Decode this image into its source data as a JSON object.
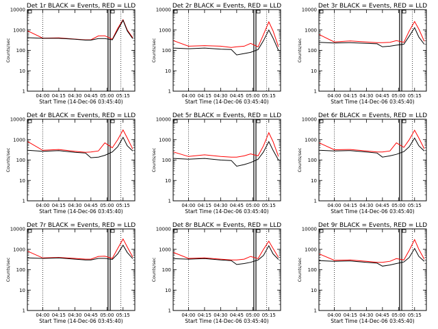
{
  "chart_data": {
    "type": "line",
    "layout": "3x3 grid of panels",
    "x_ticks": [
      "04:00",
      "04:15",
      "04:30",
      "04:45",
      "05:00",
      "05:15"
    ],
    "x_range": [
      "03:45:40",
      "05:26:00"
    ],
    "y_scale": "log",
    "y_range": [
      1,
      10000
    ],
    "y_ticks": [
      "1",
      "10",
      "100",
      "1000",
      "10000"
    ],
    "ylabel": "Counts/sec",
    "xlabel": "Start Time (14-Dec-06 03:45:40)",
    "reference_lines": {
      "dotted": [
        "04:00",
        "05:13"
      ],
      "solid": [
        "05:01",
        "05:03"
      ]
    },
    "series_colors": {
      "events": "#000000",
      "lld": "#ff0000"
    },
    "panels": [
      {
        "title": "Det 1r BLACK = Events, RED = LLD",
        "series": [
          {
            "x": [
              "03:46",
              "04:00",
              "04:15",
              "04:30",
              "04:40",
              "04:45",
              "04:52",
              "04:58",
              "05:05",
              "05:10",
              "05:15",
              "05:19",
              "05:24"
            ],
            "values": [
              420,
              390,
              390,
              350,
              320,
              320,
              380,
              380,
              330,
              1000,
              3000,
              900,
              380
            ]
          },
          {
            "x": [
              "03:46",
              "04:00",
              "04:15",
              "04:30",
              "04:40",
              "04:45",
              "04:52",
              "04:58",
              "05:05",
              "05:10",
              "05:15",
              "05:19",
              "05:24"
            ],
            "values": [
              900,
              400,
              410,
              360,
              330,
              330,
              510,
              520,
              350,
              1200,
              3200,
              1000,
              420
            ]
          }
        ]
      },
      {
        "title": "Det 2r BLACK = Events, RED = LLD",
        "series": [
          {
            "x": [
              "03:46",
              "04:00",
              "04:15",
              "04:30",
              "04:40",
              "04:45",
              "04:52",
              "04:58",
              "05:05",
              "05:10",
              "05:15",
              "05:19",
              "05:24"
            ],
            "values": [
              130,
              120,
              130,
              115,
              110,
              60,
              70,
              80,
              110,
              300,
              1000,
              400,
              100
            ]
          },
          {
            "x": [
              "03:46",
              "04:00",
              "04:15",
              "04:30",
              "04:40",
              "04:45",
              "04:52",
              "04:58",
              "05:05",
              "05:10",
              "05:15",
              "05:19",
              "05:24"
            ],
            "values": [
              300,
              160,
              170,
              160,
              140,
              150,
              160,
              220,
              150,
              600,
              2500,
              900,
              150
            ]
          }
        ]
      },
      {
        "title": "Det 3r BLACK = Events, RED = LLD",
        "series": [
          {
            "x": [
              "03:46",
              "04:00",
              "04:15",
              "04:30",
              "04:40",
              "04:45",
              "04:52",
              "04:58",
              "05:05",
              "05:10",
              "05:15",
              "05:19",
              "05:24"
            ],
            "values": [
              250,
              230,
              240,
              220,
              210,
              150,
              160,
              180,
              200,
              500,
              1300,
              450,
              200
            ]
          },
          {
            "x": [
              "03:46",
              "04:00",
              "04:15",
              "04:30",
              "04:40",
              "04:45",
              "04:52",
              "04:58",
              "05:05",
              "05:10",
              "05:15",
              "05:19",
              "05:24"
            ],
            "values": [
              600,
              260,
              290,
              260,
              240,
              240,
              250,
              300,
              250,
              900,
              2600,
              1100,
              280
            ]
          }
        ]
      },
      {
        "title": "Det 4r BLACK = Events, RED = LLD",
        "series": [
          {
            "x": [
              "03:46",
              "04:00",
              "04:15",
              "04:30",
              "04:40",
              "04:45",
              "04:52",
              "04:58",
              "05:05",
              "05:10",
              "05:15",
              "05:19",
              "05:24"
            ],
            "values": [
              300,
              270,
              290,
              240,
              220,
              130,
              140,
              170,
              250,
              450,
              1300,
              500,
              280
            ]
          },
          {
            "x": [
              "03:46",
              "04:00",
              "04:15",
              "04:30",
              "04:40",
              "04:45",
              "04:52",
              "04:58",
              "05:05",
              "05:10",
              "05:15",
              "05:19",
              "05:24"
            ],
            "values": [
              800,
              300,
              330,
              270,
              240,
              250,
              280,
              700,
              400,
              1000,
              3000,
              1200,
              350
            ]
          }
        ]
      },
      {
        "title": "Det 5r BLACK = Events, RED = LLD",
        "series": [
          {
            "x": [
              "03:46",
              "04:00",
              "04:15",
              "04:30",
              "04:40",
              "04:45",
              "04:52",
              "04:58",
              "05:05",
              "05:10",
              "05:15",
              "05:19",
              "05:24"
            ],
            "values": [
              120,
              110,
              120,
              100,
              95,
              50,
              60,
              75,
              110,
              250,
              800,
              300,
              100
            ]
          },
          {
            "x": [
              "03:46",
              "04:00",
              "04:15",
              "04:30",
              "04:40",
              "04:45",
              "04:52",
              "04:58",
              "05:05",
              "05:10",
              "05:15",
              "05:19",
              "05:24"
            ],
            "values": [
              250,
              150,
              180,
              150,
              140,
              140,
              160,
              200,
              160,
              500,
              2200,
              800,
              150
            ]
          }
        ]
      },
      {
        "title": "Det 6r BLACK = Events, RED = LLD",
        "series": [
          {
            "x": [
              "03:46",
              "04:00",
              "04:15",
              "04:30",
              "04:40",
              "04:45",
              "04:52",
              "04:58",
              "05:05",
              "05:10",
              "05:15",
              "05:19",
              "05:24"
            ],
            "values": [
              300,
              280,
              290,
              250,
              220,
              140,
              160,
              190,
              260,
              450,
              1200,
              500,
              280
            ]
          },
          {
            "x": [
              "03:46",
              "04:00",
              "04:15",
              "04:30",
              "04:40",
              "04:45",
              "04:52",
              "04:58",
              "05:05",
              "05:10",
              "05:15",
              "05:19",
              "05:24"
            ],
            "values": [
              700,
              320,
              330,
              280,
              250,
              250,
              280,
              700,
              420,
              1000,
              2900,
              1200,
              360
            ]
          }
        ]
      },
      {
        "title": "Det 7r BLACK = Events, RED = LLD",
        "series": [
          {
            "x": [
              "03:46",
              "04:00",
              "04:15",
              "04:30",
              "04:40",
              "04:45",
              "04:52",
              "04:58",
              "05:05",
              "05:10",
              "05:15",
              "05:19",
              "05:24"
            ],
            "values": [
              380,
              360,
              380,
              330,
              300,
              300,
              360,
              360,
              320,
              600,
              1600,
              700,
              350
            ]
          },
          {
            "x": [
              "03:46",
              "04:00",
              "04:15",
              "04:30",
              "04:40",
              "04:45",
              "04:52",
              "04:58",
              "05:05",
              "05:10",
              "05:15",
              "05:19",
              "05:24"
            ],
            "values": [
              800,
              380,
              400,
              360,
              330,
              330,
              450,
              460,
              360,
              1100,
              3200,
              1300,
              420
            ]
          }
        ]
      },
      {
        "title": "Det 8r BLACK = Events, RED = LLD",
        "series": [
          {
            "x": [
              "03:46",
              "04:00",
              "04:15",
              "04:30",
              "04:40",
              "04:45",
              "04:52",
              "04:58",
              "05:05",
              "05:10",
              "05:15",
              "05:19",
              "05:24"
            ],
            "values": [
              350,
              330,
              350,
              300,
              280,
              180,
              200,
              230,
              300,
              500,
              1500,
              600,
              320
            ]
          },
          {
            "x": [
              "03:46",
              "04:00",
              "04:15",
              "04:30",
              "04:40",
              "04:45",
              "04:52",
              "04:58",
              "05:05",
              "05:10",
              "05:15",
              "05:19",
              "05:24"
            ],
            "values": [
              700,
              360,
              380,
              330,
              300,
              300,
              330,
              450,
              350,
              1000,
              2500,
              1100,
              400
            ]
          }
        ]
      },
      {
        "title": "Det 9r BLACK = Events, RED = LLD",
        "series": [
          {
            "x": [
              "03:46",
              "04:00",
              "04:15",
              "04:30",
              "04:40",
              "04:45",
              "04:52",
              "04:58",
              "05:05",
              "05:10",
              "05:15",
              "05:19",
              "05:24"
            ],
            "values": [
              280,
              260,
              270,
              230,
              210,
              150,
              170,
              200,
              240,
              400,
              1100,
              450,
              260
            ]
          },
          {
            "x": [
              "03:46",
              "04:00",
              "04:15",
              "04:30",
              "04:40",
              "04:45",
              "04:52",
              "04:58",
              "05:05",
              "05:10",
              "05:15",
              "05:19",
              "05:24"
            ],
            "values": [
              600,
              290,
              300,
              260,
              230,
              230,
              260,
              350,
              300,
              900,
              3000,
              1000,
              330
            ]
          }
        ]
      }
    ]
  }
}
